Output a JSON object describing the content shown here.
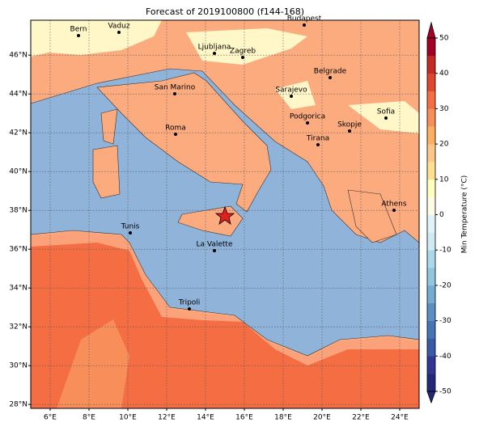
{
  "title": "Forecast of 2019100800 (f144-168)",
  "map": {
    "lon_range": [
      5,
      25
    ],
    "lat_range": [
      27.8,
      47.8
    ],
    "lon_ticks": [
      {
        "value": 6,
        "label": "6°E"
      },
      {
        "value": 8,
        "label": "8°E"
      },
      {
        "value": 10,
        "label": "10°E"
      },
      {
        "value": 12,
        "label": "12°E"
      },
      {
        "value": 14,
        "label": "14°E"
      },
      {
        "value": 16,
        "label": "16°E"
      },
      {
        "value": 18,
        "label": "18°E"
      },
      {
        "value": 20,
        "label": "20°E"
      },
      {
        "value": 22,
        "label": "22°E"
      },
      {
        "value": 24,
        "label": "24°E"
      }
    ],
    "lat_ticks": [
      {
        "value": 28,
        "label": "28°N"
      },
      {
        "value": 30,
        "label": "30°N"
      },
      {
        "value": 32,
        "label": "32°N"
      },
      {
        "value": 34,
        "label": "34°N"
      },
      {
        "value": 36,
        "label": "36°N"
      },
      {
        "value": 38,
        "label": "38°N"
      },
      {
        "value": 40,
        "label": "40°N"
      },
      {
        "value": 42,
        "label": "42°N"
      },
      {
        "value": 44,
        "label": "44°N"
      },
      {
        "value": 46,
        "label": "46°N"
      }
    ],
    "grid": true
  },
  "cities": [
    "Bern",
    "Vaduz",
    "Budapest",
    "Ljubljana",
    "Zagreb",
    "Belgrade",
    "San Marino",
    "Sarajevo",
    "Sofia",
    "Podgorica",
    "Skopje",
    "Roma",
    "Tirana",
    "Athens",
    "Tunis",
    "La Valette",
    "Tripoli"
  ],
  "colorbar": {
    "label": "Min Temperature (°C)",
    "range": [
      -50,
      50
    ],
    "ticks": [
      -50,
      -40,
      -30,
      -20,
      -10,
      0,
      10,
      20,
      30,
      40,
      50
    ],
    "colors": [
      "#232878",
      "#313695",
      "#3a5aa8",
      "#4575b4",
      "#5b8fc4",
      "#74add1",
      "#92c5de",
      "#abd9e9",
      "#d0eaf3",
      "#e0f3f8",
      "#fffbe4",
      "#ffffbf",
      "#fee090",
      "#fdc68a",
      "#fdae61",
      "#f88e5a",
      "#f46d43",
      "#e0452f",
      "#c62a25",
      "#a50026"
    ]
  }
}
